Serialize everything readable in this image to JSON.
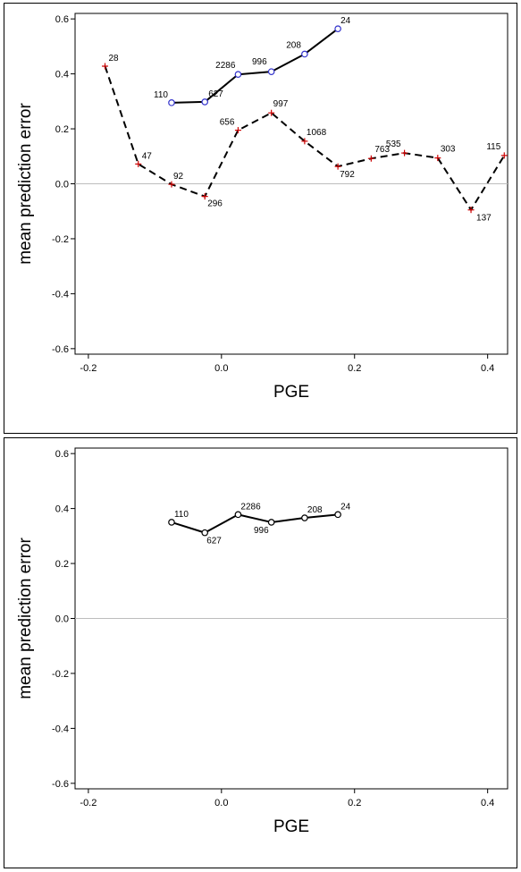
{
  "chart_data": [
    {
      "type": "line",
      "xlabel": "PGE",
      "ylabel": "mean prediction error",
      "xlim": [
        -0.22,
        0.43
      ],
      "ylim": [
        -0.62,
        0.62
      ],
      "xticks": [
        -0.2,
        0.0,
        0.2,
        0.4
      ],
      "yticks": [
        -0.6,
        -0.4,
        -0.2,
        0.0,
        0.2,
        0.4,
        0.6
      ],
      "x_tick_labels": [
        "-0.2",
        "0.0",
        "0.2",
        "0.4"
      ],
      "y_tick_labels": [
        "-0.6",
        "-0.4",
        "-0.2",
        "0.0",
        "0.2",
        "0.4",
        "0.6"
      ],
      "reference_line_y": 0.0,
      "series": [
        {
          "style": "solid",
          "marker": "circle",
          "marker_color": "#3333cc",
          "x": [
            -0.075,
            -0.025,
            0.025,
            0.075,
            0.125,
            0.175
          ],
          "y": [
            0.295,
            0.298,
            0.398,
            0.408,
            0.472,
            0.564
          ],
          "labels": [
            "110",
            "627",
            "2286",
            "996",
            "208",
            "24"
          ]
        },
        {
          "style": "dashed",
          "marker": "plus",
          "marker_color": "#cc0000",
          "x": [
            -0.175,
            -0.125,
            -0.075,
            -0.025,
            0.025,
            0.075,
            0.125,
            0.175,
            0.225,
            0.275,
            0.325,
            0.375,
            0.425
          ],
          "y": [
            0.428,
            0.072,
            -0.002,
            -0.046,
            0.195,
            0.258,
            0.155,
            0.063,
            0.092,
            0.112,
            0.094,
            -0.095,
            0.103
          ],
          "labels": [
            "28",
            "47",
            "92",
            "296",
            "656",
            "997",
            "1068",
            "792",
            "763",
            "535",
            "303",
            "137",
            "115"
          ]
        }
      ]
    },
    {
      "type": "line",
      "xlabel": "PGE",
      "ylabel": "mean prediction error",
      "xlim": [
        -0.22,
        0.43
      ],
      "ylim": [
        -0.62,
        0.62
      ],
      "xticks": [
        -0.2,
        0.0,
        0.2,
        0.4
      ],
      "yticks": [
        -0.6,
        -0.4,
        -0.2,
        0.0,
        0.2,
        0.4,
        0.6
      ],
      "x_tick_labels": [
        "-0.2",
        "0.0",
        "0.2",
        "0.4"
      ],
      "y_tick_labels": [
        "-0.6",
        "-0.4",
        "-0.2",
        "0.0",
        "0.2",
        "0.4",
        "0.6"
      ],
      "reference_line_y": 0.0,
      "series": [
        {
          "style": "solid",
          "marker": "circle",
          "marker_color": "#000000",
          "x": [
            -0.075,
            -0.025,
            0.025,
            0.075,
            0.125,
            0.175
          ],
          "y": [
            0.35,
            0.312,
            0.378,
            0.35,
            0.366,
            0.378
          ],
          "labels": [
            "110",
            "627",
            "2286",
            "996",
            "208",
            "24"
          ]
        }
      ]
    }
  ]
}
